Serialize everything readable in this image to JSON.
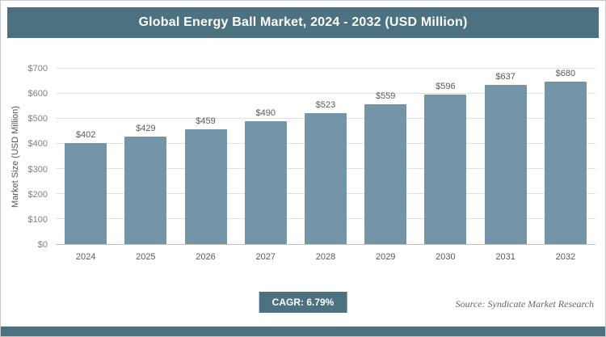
{
  "header": {
    "title": "Global Energy Ball Market, 2024 - 2032 (USD Million)"
  },
  "chart_data": {
    "type": "bar",
    "title": "Global Energy Ball Market, 2024 - 2032 (USD Million)",
    "categories": [
      "2024",
      "2025",
      "2026",
      "2027",
      "2028",
      "2029",
      "2030",
      "2031",
      "2032"
    ],
    "values": [
      402,
      429,
      459,
      490,
      523,
      559,
      596,
      637,
      680
    ],
    "value_prefix": "$",
    "xlabel": "",
    "ylabel": "Market Size (USD Million)",
    "ylim": [
      0,
      700
    ],
    "yticks": [
      0,
      100,
      200,
      300,
      400,
      500,
      600,
      700
    ],
    "grid": true,
    "legend": "none",
    "bar_color": "#7295a7"
  },
  "footer": {
    "cagr_label": "CAGR: 6.79%",
    "source": "Source: Syndicate Market Research"
  },
  "colors": {
    "accent": "#4c7282",
    "bar": "#7295a7",
    "gridline": "#e0e0e0",
    "label_text": "#595959"
  }
}
